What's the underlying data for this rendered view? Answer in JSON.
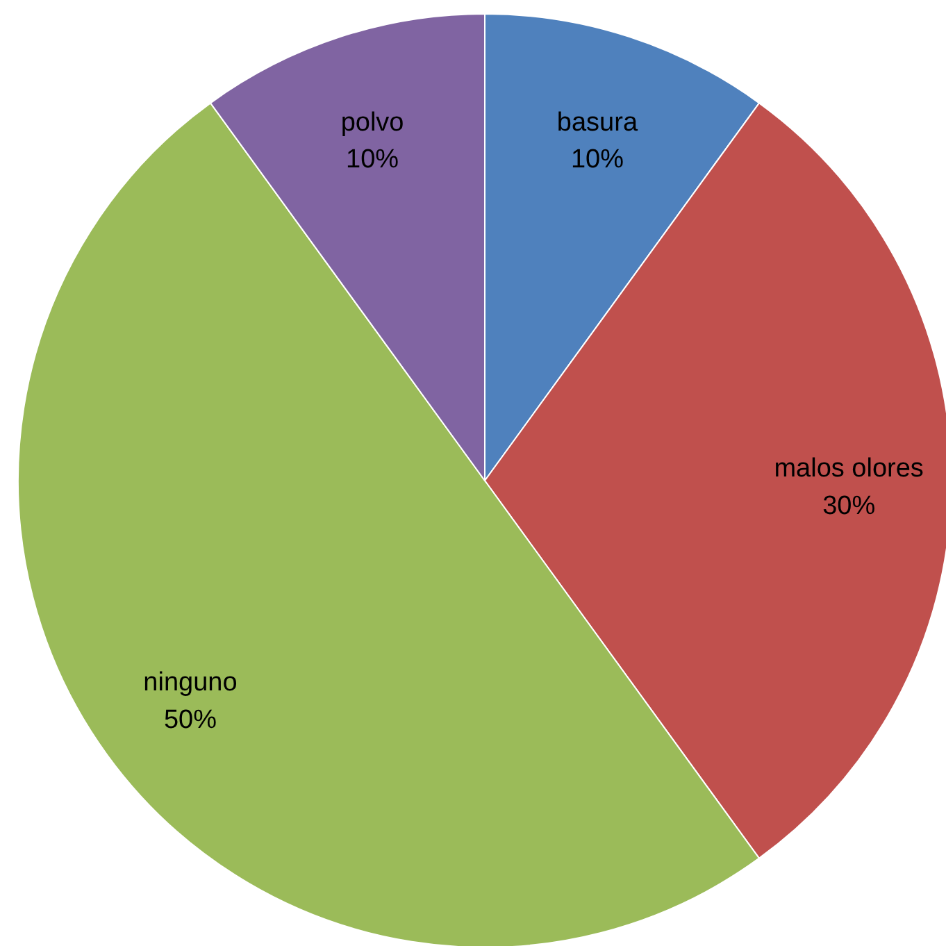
{
  "chart_data": {
    "type": "pie",
    "categories": [
      "basura",
      "malos olores",
      "ninguno",
      "polvo"
    ],
    "values": [
      10,
      30,
      50,
      10
    ],
    "colors": [
      "#4f81bd",
      "#c0504d",
      "#9bbb59",
      "#8064a2"
    ],
    "value_labels": [
      "10%",
      "30%",
      "50%",
      "10%"
    ]
  }
}
